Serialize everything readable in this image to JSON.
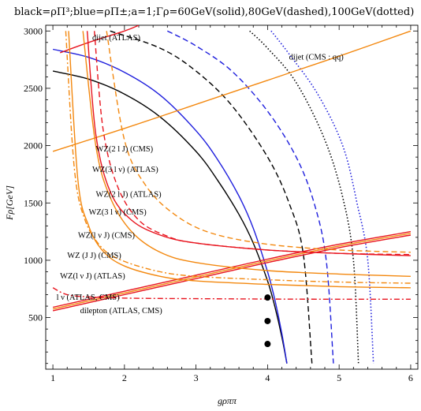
{
  "chart_data": {
    "type": "line",
    "title": "black=ρΠ³;blue=ρΠ±;a=1;Γρ=60GeV(solid),80GeV(dashed),100GeV(dotted)",
    "xlabel": "gρππ",
    "ylabel": "Fρ[GeV]",
    "xlim": [
      0.9,
      6.1
    ],
    "ylim": [
      50,
      3050
    ],
    "xticks": [
      1,
      2,
      3,
      4,
      5,
      6
    ],
    "yticks": [
      500,
      1000,
      1500,
      2000,
      2500,
      3000
    ],
    "colors": {
      "black": "#000000",
      "blue": "#1f1fdd",
      "red": "#e8141e",
      "orange": "#f3880f"
    },
    "series": [
      {
        "color": "black",
        "style": "solid",
        "x": [
          1.0,
          1.5,
          2.0,
          2.5,
          3.0,
          3.3,
          3.6,
          3.8,
          4.0,
          4.1,
          4.2,
          4.27
        ],
        "y": [
          2650,
          2580,
          2450,
          2250,
          1950,
          1700,
          1400,
          1150,
          820,
          600,
          330,
          100
        ]
      },
      {
        "color": "blue",
        "style": "solid",
        "x": [
          1.0,
          1.5,
          2.0,
          2.5,
          3.0,
          3.3,
          3.6,
          3.8,
          4.0,
          4.1,
          4.2,
          4.27
        ],
        "y": [
          2840,
          2770,
          2640,
          2440,
          2130,
          1880,
          1560,
          1280,
          900,
          660,
          360,
          100
        ]
      },
      {
        "color": "black",
        "style": "dashed",
        "x": [
          1.8,
          2.5,
          3.0,
          3.5,
          4.0,
          4.3,
          4.5,
          4.62
        ],
        "y": [
          3000,
          2850,
          2650,
          2350,
          1900,
          1500,
          1050,
          100
        ]
      },
      {
        "color": "blue",
        "style": "dashed",
        "x": [
          2.6,
          3.0,
          3.5,
          4.0,
          4.4,
          4.65,
          4.82,
          4.92
        ],
        "y": [
          3000,
          2870,
          2650,
          2300,
          1900,
          1500,
          1000,
          100
        ]
      },
      {
        "color": "black",
        "style": "dotted",
        "x": [
          3.75,
          4.0,
          4.4,
          4.8,
          5.05,
          5.2,
          5.27
        ],
        "y": [
          3000,
          2850,
          2550,
          2050,
          1550,
          1000,
          100
        ]
      },
      {
        "color": "blue",
        "style": "dotted",
        "x": [
          4.05,
          4.3,
          4.7,
          5.05,
          5.25,
          5.4,
          5.48
        ],
        "y": [
          3000,
          2800,
          2450,
          2000,
          1500,
          1000,
          100
        ]
      },
      {
        "color": "red",
        "style": "solid",
        "x": [
          1.0,
          2.0,
          3.0,
          4.0,
          5.0,
          6.0
        ],
        "y": [
          560,
          700,
          840,
          980,
          1110,
          1220
        ]
      },
      {
        "color": "red",
        "style": "solid",
        "x": [
          1.0,
          2.0,
          3.0,
          4.0,
          5.0,
          6.0
        ],
        "y": [
          590,
          730,
          870,
          1010,
          1140,
          1250
        ]
      },
      {
        "color": "orange",
        "style": "solid",
        "x": [
          1.0,
          2.0,
          3.0,
          4.0,
          5.0,
          6.0
        ],
        "y": [
          575,
          715,
          855,
          995,
          1125,
          1235
        ]
      },
      {
        "color": "orange",
        "style": "solid",
        "x": [
          1.0,
          2.0,
          3.0,
          4.0,
          5.0,
          6.0
        ],
        "y": [
          1950,
          2150,
          2360,
          2570,
          2780,
          3000
        ]
      },
      {
        "color": "red",
        "style": "solid",
        "x": [
          1.1,
          1.5,
          2.0,
          2.2
        ],
        "y": [
          2810,
          2900,
          3000,
          3050
        ]
      },
      {
        "color": "red",
        "style": "dashdot",
        "x": [
          1.0,
          1.2,
          1.5,
          2.0,
          3.0,
          4.0,
          5.0,
          6.0
        ],
        "y": [
          760,
          700,
          680,
          670,
          665,
          662,
          660,
          660
        ]
      },
      {
        "color": "orange",
        "style": "solid",
        "x": [
          1.22,
          1.35,
          1.5,
          1.7,
          2.0,
          2.5,
          3.0,
          4.0,
          5.0,
          6.0
        ],
        "y": [
          3000,
          1700,
          1300,
          1080,
          950,
          860,
          820,
          790,
          770,
          760
        ]
      },
      {
        "color": "orange",
        "style": "dashdot",
        "x": [
          1.18,
          1.3,
          1.45,
          1.7,
          2.0,
          2.5,
          3.0,
          4.0,
          5.0,
          6.0
        ],
        "y": [
          3000,
          1800,
          1350,
          1100,
          990,
          900,
          860,
          830,
          810,
          800
        ]
      },
      {
        "color": "red",
        "style": "solid",
        "x": [
          1.48,
          1.6,
          1.8,
          2.1,
          2.5,
          3.0,
          4.0,
          5.0,
          6.0
        ],
        "y": [
          3000,
          2100,
          1600,
          1350,
          1220,
          1150,
          1090,
          1060,
          1040
        ]
      },
      {
        "color": "red",
        "style": "dashed",
        "x": [
          1.58,
          1.7,
          1.9,
          2.2,
          2.6,
          3.0,
          4.0,
          5.0,
          6.0
        ],
        "y": [
          3000,
          2150,
          1650,
          1350,
          1210,
          1150,
          1090,
          1060,
          1050
        ]
      },
      {
        "color": "orange",
        "style": "solid",
        "x": [
          1.42,
          1.6,
          1.8,
          2.1,
          2.5,
          3.0,
          4.0,
          5.0,
          6.0
        ],
        "y": [
          3000,
          2000,
          1550,
          1250,
          1070,
          980,
          910,
          880,
          860
        ]
      },
      {
        "color": "orange",
        "style": "dashed",
        "x": [
          1.75,
          2.0,
          2.3,
          2.7,
          3.2,
          4.0,
          5.0,
          6.0
        ],
        "y": [
          3000,
          2050,
          1650,
          1400,
          1240,
          1140,
          1090,
          1070
        ]
      }
    ],
    "points": {
      "x": [
        4.0,
        4.0,
        4.0
      ],
      "y": [
        675,
        470,
        270
      ]
    },
    "annotations": [
      {
        "text": "dijet (ATLAS)",
        "x": 1.55,
        "y": 2920
      },
      {
        "text": "dijet (CMS : qq)",
        "x": 4.3,
        "y": 2750
      },
      {
        "text": "WZ(2 l J) (CMS)",
        "x": 1.6,
        "y": 1950
      },
      {
        "text": "WZ(3 l ν) (ATLAS)",
        "x": 1.55,
        "y": 1770
      },
      {
        "text": "WZ(2 l J) (ATLAS)",
        "x": 1.6,
        "y": 1555
      },
      {
        "text": "WZ(3 l ν) (CMS)",
        "x": 1.5,
        "y": 1400
      },
      {
        "text": "WZ(l ν J) (CMS)",
        "x": 1.35,
        "y": 1195
      },
      {
        "text": "WZ (J J) (CMS)",
        "x": 1.2,
        "y": 1020
      },
      {
        "text": "WZ(l ν J) (ATLAS)",
        "x": 1.1,
        "y": 840
      },
      {
        "text": "l ν (ATLAS, CMS)",
        "x": 1.05,
        "y": 655
      },
      {
        "text": "dilepton (ATLAS, CMS)",
        "x": 1.38,
        "y": 540
      }
    ]
  }
}
